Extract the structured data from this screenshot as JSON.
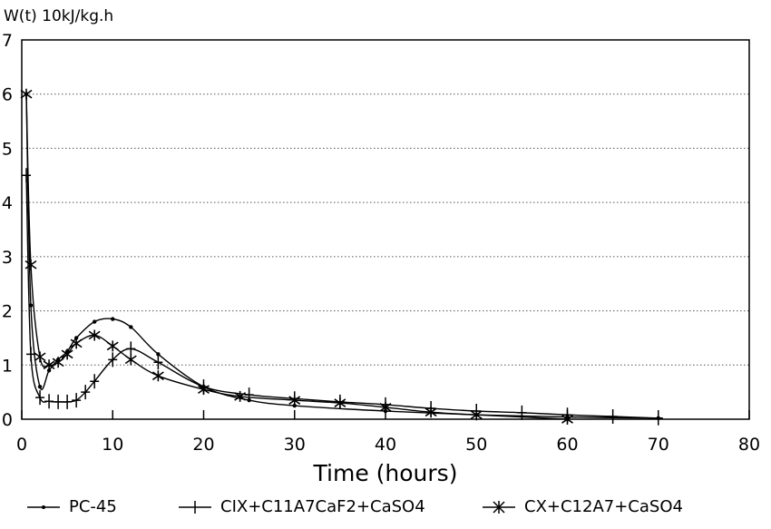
{
  "chart_data": {
    "type": "line",
    "title": "",
    "ylabel": "W(t) 10kJ/kg.h",
    "xlabel": "Time (hours)",
    "xlim": [
      0,
      80
    ],
    "ylim": [
      0,
      7
    ],
    "x_ticks": [
      0,
      10,
      20,
      30,
      40,
      50,
      60,
      70,
      80
    ],
    "y_ticks": [
      0,
      1,
      2,
      3,
      4,
      5,
      6,
      7
    ],
    "grid": "horizontal dotted",
    "legend_position": "bottom",
    "series": [
      {
        "name": "PC-45",
        "marker": "dot",
        "x": [
          0.5,
          1,
          2,
          3,
          4,
          5,
          6,
          8,
          10,
          12,
          15,
          20,
          25,
          30,
          40,
          50,
          60,
          70
        ],
        "y": [
          6.0,
          2.1,
          0.6,
          0.9,
          1.1,
          1.25,
          1.5,
          1.8,
          1.85,
          1.7,
          1.2,
          0.6,
          0.35,
          0.25,
          0.15,
          0.08,
          0.04,
          0.02
        ]
      },
      {
        "name": "CIX+C11A7CaF2+CaSO4",
        "marker": "plus",
        "x": [
          0.5,
          1,
          2,
          3,
          4,
          5,
          6,
          7,
          8,
          10,
          12,
          15,
          20,
          25,
          30,
          35,
          40,
          45,
          50,
          55,
          60,
          65,
          70
        ],
        "y": [
          4.5,
          1.2,
          0.4,
          0.33,
          0.32,
          0.32,
          0.35,
          0.5,
          0.7,
          1.1,
          1.3,
          1.05,
          0.6,
          0.45,
          0.38,
          0.32,
          0.27,
          0.2,
          0.15,
          0.12,
          0.08,
          0.05,
          0.02
        ]
      },
      {
        "name": "CX+C12A7+CaSO4",
        "marker": "star",
        "x": [
          0.5,
          1,
          2,
          3,
          4,
          5,
          6,
          8,
          10,
          12,
          15,
          20,
          24,
          30,
          35,
          40,
          45,
          50,
          60
        ],
        "y": [
          6.0,
          2.85,
          1.15,
          1.0,
          1.05,
          1.2,
          1.4,
          1.55,
          1.35,
          1.1,
          0.8,
          0.55,
          0.42,
          0.35,
          0.3,
          0.22,
          0.13,
          0.08,
          0.0
        ]
      }
    ]
  }
}
